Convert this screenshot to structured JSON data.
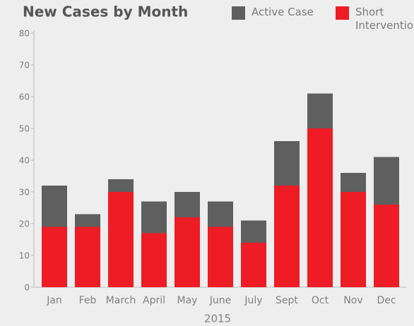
{
  "chart_data": {
    "type": "stacked_bar",
    "title": "New Cases by Month",
    "x_label": "2015",
    "categories": [
      "Jan",
      "Feb",
      "March",
      "April",
      "May",
      "June",
      "July",
      "Sept",
      "Oct",
      "Nov",
      "Dec"
    ],
    "series": [
      {
        "name": "Short Intervention",
        "color": "#ee1c25",
        "values": [
          19,
          19,
          30,
          17,
          22,
          19,
          14,
          32,
          50,
          30,
          26
        ]
      },
      {
        "name": "Active Case",
        "color": "#5f5f5f",
        "values": [
          13,
          4,
          4,
          10,
          8,
          8,
          7,
          14,
          11,
          6,
          15
        ]
      }
    ],
    "ylim": [
      0,
      80
    ],
    "yticks": [
      0,
      10,
      20,
      30,
      40,
      50,
      60,
      70,
      80
    ],
    "grid": false
  }
}
